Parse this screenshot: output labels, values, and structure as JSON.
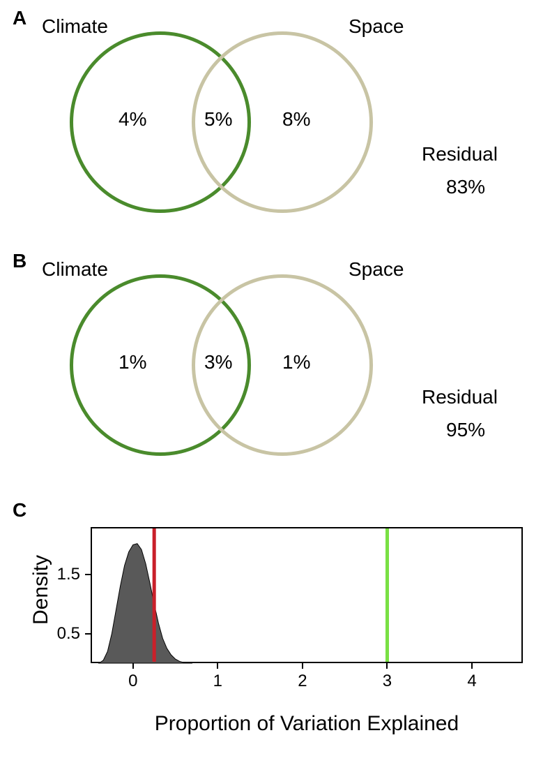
{
  "panelA": {
    "label": "A",
    "climate_label": "Climate",
    "space_label": "Space",
    "residual_label": "Residual",
    "left_value": "4%",
    "overlap_value": "5%",
    "right_value": "8%",
    "residual_value": "83%",
    "circle_left_color": "#4a8b2c",
    "circle_right_color": "#c8c4a4",
    "circle_stroke_width": 5,
    "circle_diameter": 260,
    "circle_overlap_offset": 175
  },
  "panelB": {
    "label": "B",
    "climate_label": "Climate",
    "space_label": "Space",
    "residual_label": "Residual",
    "left_value": "1%",
    "overlap_value": "3%",
    "right_value": "1%",
    "residual_value": "95%",
    "circle_left_color": "#4a8b2c",
    "circle_right_color": "#c8c4a4",
    "circle_stroke_width": 5,
    "circle_diameter": 260,
    "circle_overlap_offset": 175
  },
  "panelC": {
    "label": "C",
    "x_axis_title": "Proportion of Variation Explained",
    "y_axis_title": "Density",
    "x_ticks": [
      0,
      1,
      2,
      3,
      4
    ],
    "y_ticks": [
      0.5,
      1.5
    ],
    "xlim": [
      -0.5,
      4.6
    ],
    "ylim": [
      0,
      2.3
    ],
    "plot_bg": "#ffffff",
    "border_color": "#000000",
    "density_fill": "#595959",
    "density_points": [
      [
        -0.4,
        0.0
      ],
      [
        -0.35,
        0.05
      ],
      [
        -0.3,
        0.2
      ],
      [
        -0.25,
        0.5
      ],
      [
        -0.2,
        0.9
      ],
      [
        -0.15,
        1.3
      ],
      [
        -0.1,
        1.65
      ],
      [
        -0.05,
        1.88
      ],
      [
        0.0,
        2.0
      ],
      [
        0.05,
        2.02
      ],
      [
        0.1,
        1.92
      ],
      [
        0.15,
        1.68
      ],
      [
        0.2,
        1.35
      ],
      [
        0.25,
        1.0
      ],
      [
        0.3,
        0.68
      ],
      [
        0.35,
        0.42
      ],
      [
        0.4,
        0.25
      ],
      [
        0.45,
        0.14
      ],
      [
        0.5,
        0.07
      ],
      [
        0.55,
        0.03
      ],
      [
        0.6,
        0.01
      ],
      [
        0.7,
        0.0
      ]
    ],
    "vline_red": {
      "x": 0.25,
      "color": "#c9202a",
      "width": 5
    },
    "vline_green": {
      "x": 3.0,
      "color": "#79e044",
      "width": 5
    }
  }
}
